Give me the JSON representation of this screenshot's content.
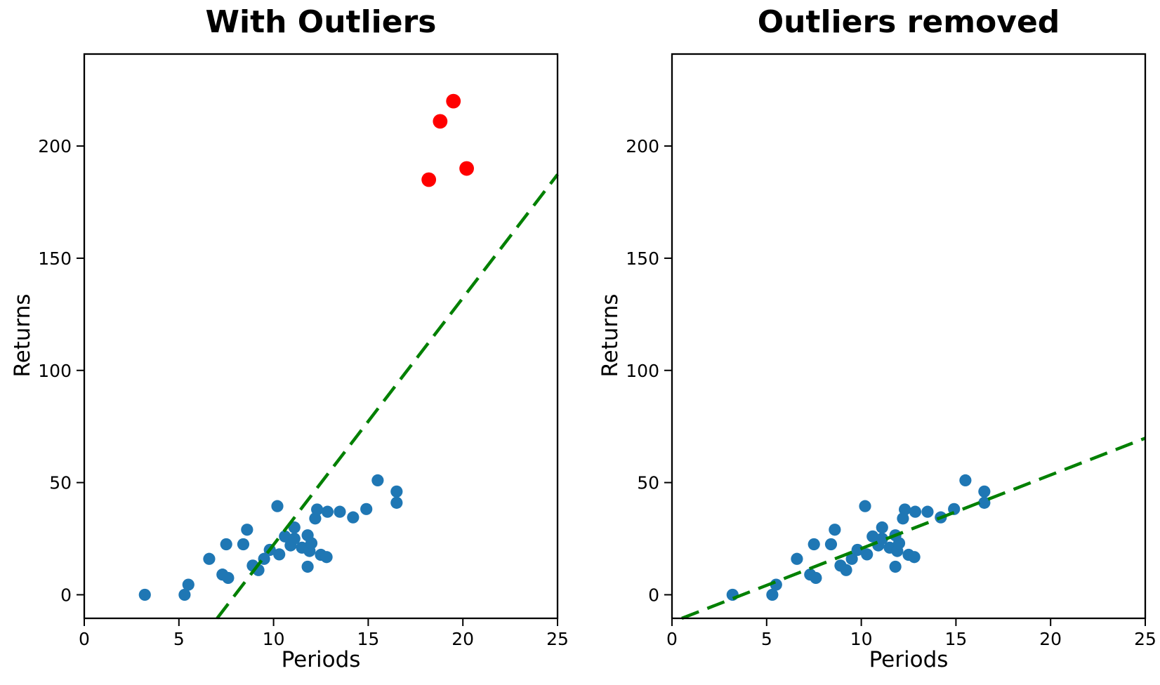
{
  "figure": {
    "background": "#ffffff",
    "text_color": "#000000",
    "spine_color": "#000000"
  },
  "chart_data": [
    {
      "id": "with-outliers",
      "type": "scatter",
      "title": "With Outliers",
      "xlabel": "Periods",
      "ylabel": "Returns",
      "xlim": [
        0,
        25
      ],
      "ylim": [
        -10.5,
        241
      ],
      "xticks": [
        0,
        5,
        10,
        15,
        20,
        25
      ],
      "yticks": [
        0,
        50,
        100,
        150,
        200
      ],
      "grid": false,
      "legend": null,
      "series": [
        {
          "name": "returns-inliers",
          "type": "scatter",
          "color": "#1f77b4",
          "marker_radius": 8.6,
          "points": [
            [
              3.2,
              0
            ],
            [
              5.3,
              0
            ],
            [
              5.5,
              4.5
            ],
            [
              6.6,
              16
            ],
            [
              7.3,
              9
            ],
            [
              7.6,
              7.5
            ],
            [
              7.5,
              22.5
            ],
            [
              8.4,
              22.5
            ],
            [
              8.6,
              29
            ],
            [
              8.9,
              13
            ],
            [
              9.2,
              11
            ],
            [
              9.5,
              16
            ],
            [
              9.8,
              20
            ],
            [
              10.2,
              39.5
            ],
            [
              10.3,
              18
            ],
            [
              10.6,
              26
            ],
            [
              10.9,
              22
            ],
            [
              11.1,
              30
            ],
            [
              11.1,
              25
            ],
            [
              11.5,
              21
            ],
            [
              11.8,
              26.5
            ],
            [
              11.9,
              19.5
            ],
            [
              11.8,
              12.5
            ],
            [
              12.0,
              23
            ],
            [
              12.2,
              34
            ],
            [
              12.3,
              38
            ],
            [
              12.5,
              17.8
            ],
            [
              12.8,
              16.8
            ],
            [
              12.85,
              37
            ],
            [
              13.5,
              37
            ],
            [
              14.2,
              34.5
            ],
            [
              14.9,
              38.2
            ],
            [
              15.5,
              51
            ],
            [
              16.5,
              46
            ],
            [
              16.5,
              41
            ]
          ]
        },
        {
          "name": "returns-outliers",
          "type": "scatter",
          "color": "#ff0000",
          "marker_radius": 10.4,
          "points": [
            [
              18.2,
              185
            ],
            [
              18.8,
              211
            ],
            [
              19.5,
              220
            ],
            [
              20.2,
              190
            ]
          ]
        },
        {
          "name": "regression-fit",
          "type": "line",
          "color": "#008000",
          "style": "dashed",
          "dash": [
            26,
            13
          ],
          "width": 4.5,
          "slope": 11.0,
          "intercept": -87.7
        }
      ]
    },
    {
      "id": "outliers-removed",
      "type": "scatter",
      "title": "Outliers removed",
      "xlabel": "Periods",
      "ylabel": "Returns",
      "xlim": [
        0,
        25
      ],
      "ylim": [
        -10.5,
        241
      ],
      "xticks": [
        0,
        5,
        10,
        15,
        20,
        25
      ],
      "yticks": [
        0,
        50,
        100,
        150,
        200
      ],
      "grid": false,
      "legend": null,
      "series": [
        {
          "name": "returns-inliers",
          "type": "scatter",
          "color": "#1f77b4",
          "marker_radius": 8.6,
          "points": [
            [
              3.2,
              0
            ],
            [
              5.3,
              0
            ],
            [
              5.5,
              4.5
            ],
            [
              6.6,
              16
            ],
            [
              7.3,
              9
            ],
            [
              7.6,
              7.5
            ],
            [
              7.5,
              22.5
            ],
            [
              8.4,
              22.5
            ],
            [
              8.6,
              29
            ],
            [
              8.9,
              13
            ],
            [
              9.2,
              11
            ],
            [
              9.5,
              16
            ],
            [
              9.8,
              20
            ],
            [
              10.2,
              39.5
            ],
            [
              10.3,
              18
            ],
            [
              10.6,
              26
            ],
            [
              10.9,
              22
            ],
            [
              11.1,
              30
            ],
            [
              11.1,
              25
            ],
            [
              11.5,
              21
            ],
            [
              11.8,
              26.5
            ],
            [
              11.9,
              19.5
            ],
            [
              11.8,
              12.5
            ],
            [
              12.0,
              23
            ],
            [
              12.2,
              34
            ],
            [
              12.3,
              38
            ],
            [
              12.5,
              17.8
            ],
            [
              12.8,
              16.8
            ],
            [
              12.85,
              37
            ],
            [
              13.5,
              37
            ],
            [
              14.2,
              34.5
            ],
            [
              14.9,
              38.2
            ],
            [
              15.5,
              51
            ],
            [
              16.5,
              46
            ],
            [
              16.5,
              41
            ]
          ]
        },
        {
          "name": "regression-fit",
          "type": "line",
          "color": "#008000",
          "style": "dashed",
          "dash": [
            26,
            13
          ],
          "width": 4.5,
          "slope": 3.28,
          "intercept": -12.2
        }
      ]
    }
  ]
}
